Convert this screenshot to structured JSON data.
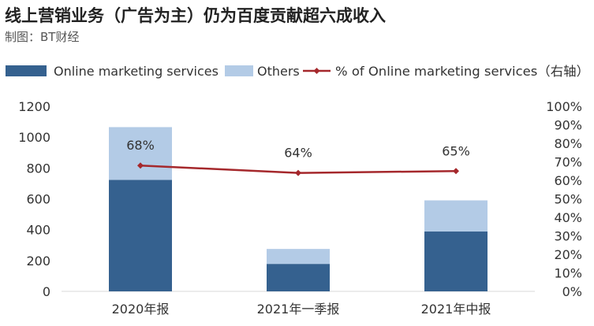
{
  "title": "线上营销业务（广告为主）仍为百度贡献超六成收入",
  "subtitle": "制图：BT财经",
  "colors": {
    "online_marketing": "#35618f",
    "others": "#b3cbe6",
    "percent_line": "#a5282c",
    "axis": "#d9d9d9"
  },
  "chart_data": {
    "type": "bar",
    "stacked": true,
    "categories": [
      "2020年报",
      "2021年一季报",
      "2021年中报"
    ],
    "series": [
      {
        "name": "Online marketing services",
        "values": [
          723,
          178,
          388
        ],
        "axis": "left"
      },
      {
        "name": "Others",
        "values": [
          342,
          97,
          202
        ],
        "axis": "left"
      },
      {
        "name": "% of Online marketing services（右轴）",
        "type": "line",
        "values": [
          0.68,
          0.64,
          0.65
        ],
        "axis": "right"
      }
    ],
    "data_labels": [
      "68%",
      "64%",
      "65%"
    ],
    "y_left": {
      "ylim": [
        0,
        1200
      ],
      "ticks": [
        "0",
        "200",
        "400",
        "600",
        "800",
        "1000",
        "1200"
      ]
    },
    "y_right": {
      "ylim": [
        0,
        1
      ],
      "ticks": [
        "0%",
        "10%",
        "20%",
        "30%",
        "40%",
        "50%",
        "60%",
        "70%",
        "80%",
        "90%",
        "100%"
      ]
    },
    "legend_position": "top",
    "grid": false
  }
}
